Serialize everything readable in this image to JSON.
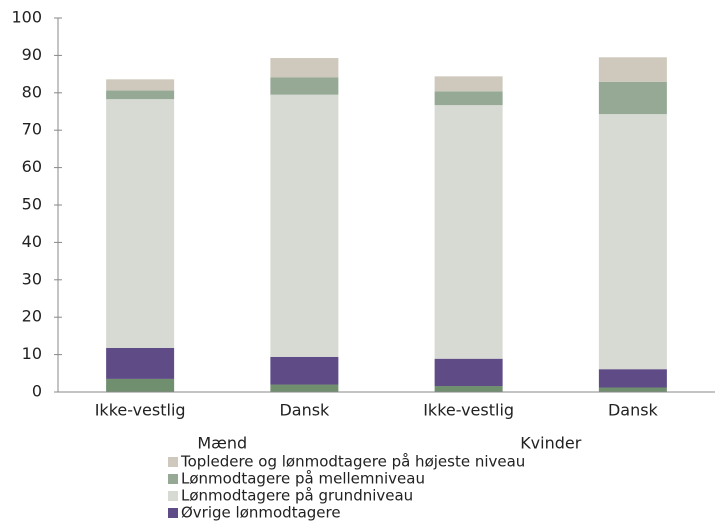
{
  "chart_data": {
    "type": "stacked_bar",
    "categories": [
      "Ikke-vestlig",
      "Dansk",
      "Ikke-vestlig",
      "Dansk"
    ],
    "groups": [
      "Mænd",
      "Kvinder"
    ],
    "series": [
      {
        "name": null,
        "color": "#6f8f6f",
        "values": [
          3.5,
          2.0,
          1.6,
          1.2
        ]
      },
      {
        "name": "Øvrige lønmodtagere",
        "color": "#5f4b86",
        "values": [
          8.3,
          7.4,
          7.3,
          4.9
        ]
      },
      {
        "name": "Lønmodtagere på grundniveau",
        "color": "#d7dad3",
        "values": [
          66.5,
          70.1,
          67.8,
          68.2
        ]
      },
      {
        "name": "Lønmodtagere på mellemniveau",
        "color": "#95a995",
        "values": [
          2.3,
          4.6,
          3.7,
          8.6
        ]
      },
      {
        "name": "Topledere og lønmodtagere på højeste niveau",
        "color": "#cfc9bd",
        "values": [
          3.0,
          5.2,
          4.0,
          6.6
        ]
      }
    ],
    "ylim": [
      0,
      100
    ],
    "yticks": [
      0,
      10,
      20,
      30,
      40,
      50,
      60,
      70,
      80,
      90,
      100
    ]
  }
}
